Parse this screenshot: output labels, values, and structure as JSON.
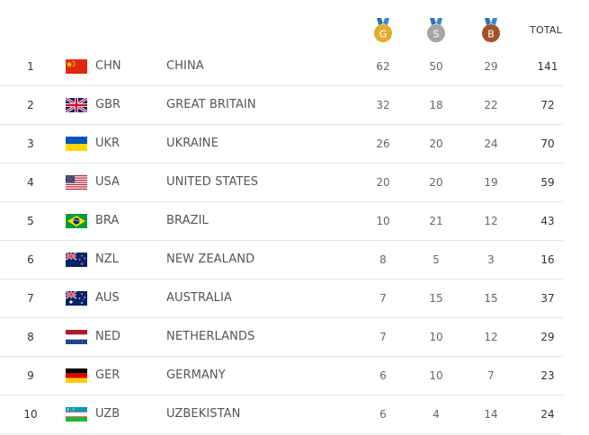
{
  "header": {
    "gold_letter": "G",
    "silver_letter": "S",
    "bronze_letter": "B",
    "total_label": "TOTAL",
    "colors": {
      "gold": "#e3ac2e",
      "silver": "#a5a5a5",
      "bronze": "#a0522d"
    }
  },
  "rows": [
    {
      "rank": "1",
      "flag": "china-flag",
      "code": "CHN",
      "country": "CHINA",
      "gold": "62",
      "silver": "50",
      "bronze": "29",
      "total": "141"
    },
    {
      "rank": "2",
      "flag": "great-britain-flag",
      "code": "GBR",
      "country": "GREAT BRITAIN",
      "gold": "32",
      "silver": "18",
      "bronze": "22",
      "total": "72"
    },
    {
      "rank": "3",
      "flag": "ukraine-flag",
      "code": "UKR",
      "country": "UKRAINE",
      "gold": "26",
      "silver": "20",
      "bronze": "24",
      "total": "70"
    },
    {
      "rank": "4",
      "flag": "usa-flag",
      "code": "USA",
      "country": "UNITED STATES",
      "gold": "20",
      "silver": "20",
      "bronze": "19",
      "total": "59"
    },
    {
      "rank": "5",
      "flag": "brazil-flag",
      "code": "BRA",
      "country": "BRAZIL",
      "gold": "10",
      "silver": "21",
      "bronze": "12",
      "total": "43"
    },
    {
      "rank": "6",
      "flag": "new-zealand-flag",
      "code": "NZL",
      "country": "NEW ZEALAND",
      "gold": "8",
      "silver": "5",
      "bronze": "3",
      "total": "16"
    },
    {
      "rank": "7",
      "flag": "australia-flag",
      "code": "AUS",
      "country": "AUSTRALIA",
      "gold": "7",
      "silver": "15",
      "bronze": "15",
      "total": "37"
    },
    {
      "rank": "8",
      "flag": "netherlands-flag",
      "code": "NED",
      "country": "NETHERLANDS",
      "gold": "7",
      "silver": "10",
      "bronze": "12",
      "total": "29"
    },
    {
      "rank": "9",
      "flag": "germany-flag",
      "code": "GER",
      "country": "GERMANY",
      "gold": "6",
      "silver": "10",
      "bronze": "7",
      "total": "23"
    },
    {
      "rank": "10",
      "flag": "uzbekistan-flag",
      "code": "UZB",
      "country": "UZBEKISTAN",
      "gold": "6",
      "silver": "4",
      "bronze": "14",
      "total": "24"
    }
  ]
}
